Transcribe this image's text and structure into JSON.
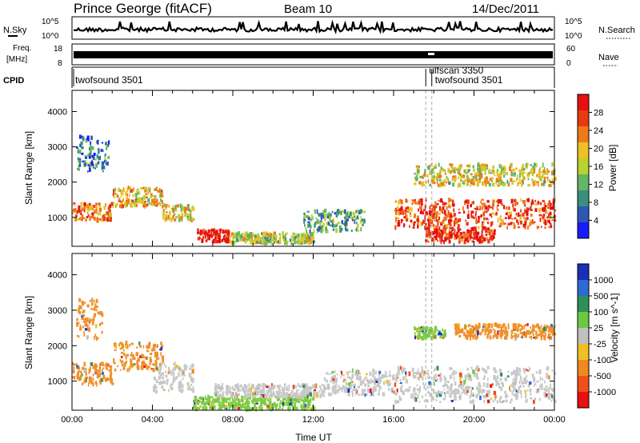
{
  "header": {
    "station": "Prince George (fitACF)",
    "beam": "Beam 10",
    "date": "14/Dec/2011"
  },
  "summary_panels": {
    "nsky_label": "N.Sky",
    "nsearch_label": "N.Search",
    "nsky_tick_top": "10^5",
    "nsky_tick_bottom": "10^0",
    "nsearch_tick_top": "10^5",
    "nsearch_tick_bottom": "10^0",
    "freq_label_1": "Freq.",
    "freq_label_2": "[MHz]",
    "freq_tick_top": "18",
    "freq_tick_bottom": "8",
    "nave_label": "Nave",
    "nave_tick_top": "60",
    "nave_tick_bottom": "0",
    "cpid_label": "CPID",
    "cpid_segments": [
      {
        "label": "twofsound 3501",
        "start_hour": 0
      },
      {
        "label": "ulfscan 3350",
        "start_hour": 17.6
      },
      {
        "label": "twofsound 3501",
        "start_hour": 17.9
      }
    ]
  },
  "chart_data": [
    {
      "type": "heatmap",
      "title": "",
      "ylabel": "Slant Range [km]",
      "xlabel": "",
      "xlim_hours": [
        0,
        24
      ],
      "ylim_km": [
        180,
        4600
      ],
      "yticks": [
        "1000",
        "2000",
        "3000",
        "4000"
      ],
      "colorbar": {
        "label": "Power [dB]",
        "ticks": [
          "4",
          "8",
          "12",
          "16",
          "20",
          "24",
          "28"
        ],
        "colors": [
          "#1a1aff",
          "#2d59b5",
          "#3a8f7c",
          "#64b564",
          "#b8d22f",
          "#f0c024",
          "#f07a18",
          "#e83a12",
          "#e81010"
        ]
      },
      "bands": [
        {
          "t": [
            0.0,
            2.0
          ],
          "r": [
            900,
            1400
          ],
          "level": 0.75
        },
        {
          "t": [
            2.0,
            4.5
          ],
          "r": [
            1300,
            1850
          ],
          "level": 0.6
        },
        {
          "t": [
            4.5,
            6.0
          ],
          "r": [
            900,
            1350
          ],
          "level": 0.55
        },
        {
          "t": [
            6.2,
            7.8
          ],
          "r": [
            300,
            650
          ],
          "level": 0.95
        },
        {
          "t": [
            7.8,
            12.0
          ],
          "r": [
            250,
            550
          ],
          "level": 0.5
        },
        {
          "t": [
            11.5,
            14.5
          ],
          "r": [
            600,
            1200
          ],
          "level": 0.35
        },
        {
          "t": [
            16.0,
            24.0
          ],
          "r": [
            700,
            1500
          ],
          "level": 0.85
        },
        {
          "t": [
            17.5,
            21.0
          ],
          "r": [
            300,
            700
          ],
          "level": 0.9
        },
        {
          "t": [
            17.0,
            24.0
          ],
          "r": [
            1900,
            2500
          ],
          "level": 0.55
        },
        {
          "t": [
            0.2,
            1.8
          ],
          "r": [
            2300,
            3300
          ],
          "level": 0.25
        }
      ]
    },
    {
      "type": "heatmap",
      "title": "",
      "ylabel": "Slant Range [km]",
      "xlabel": "Time UT",
      "xlim_hours": [
        0,
        24
      ],
      "xticks": [
        "00:00",
        "04:00",
        "08:00",
        "12:00",
        "16:00",
        "20:00",
        "00:00"
      ],
      "ylim_km": [
        180,
        4600
      ],
      "yticks": [
        "1000",
        "2000",
        "3000",
        "4000"
      ],
      "colorbar": {
        "label": "Velocity [m s^-1]",
        "ticks": [
          "1000",
          "500",
          "100",
          "25",
          "-25",
          "-100",
          "-500",
          "-1000"
        ],
        "colors": [
          "#1a2fb5",
          "#2d6bd2",
          "#2f8f5a",
          "#6cc840",
          "#c0c0c0",
          "#f0c024",
          "#f08a20",
          "#f05018",
          "#e81010"
        ]
      },
      "bands": [
        {
          "t": [
            0.0,
            2.0
          ],
          "r": [
            900,
            1500
          ],
          "v": "orange"
        },
        {
          "t": [
            2.0,
            4.5
          ],
          "r": [
            1300,
            2100
          ],
          "v": "orange"
        },
        {
          "t": [
            4.0,
            6.0
          ],
          "r": [
            700,
            1500
          ],
          "v": "gray"
        },
        {
          "t": [
            6.0,
            12.0
          ],
          "r": [
            200,
            550
          ],
          "v": "green"
        },
        {
          "t": [
            7.0,
            12.5
          ],
          "r": [
            550,
            900
          ],
          "v": "gray"
        },
        {
          "t": [
            12.5,
            16.0
          ],
          "r": [
            600,
            1300
          ],
          "v": "gray"
        },
        {
          "t": [
            16.0,
            24.0
          ],
          "r": [
            400,
            1400
          ],
          "v": "gray"
        },
        {
          "t": [
            17.0,
            18.5
          ],
          "r": [
            2200,
            2500
          ],
          "v": "green"
        },
        {
          "t": [
            19.0,
            24.0
          ],
          "r": [
            2200,
            2600
          ],
          "v": "orange"
        },
        {
          "t": [
            0.2,
            1.5
          ],
          "r": [
            2200,
            3300
          ],
          "v": "orange"
        }
      ]
    }
  ]
}
